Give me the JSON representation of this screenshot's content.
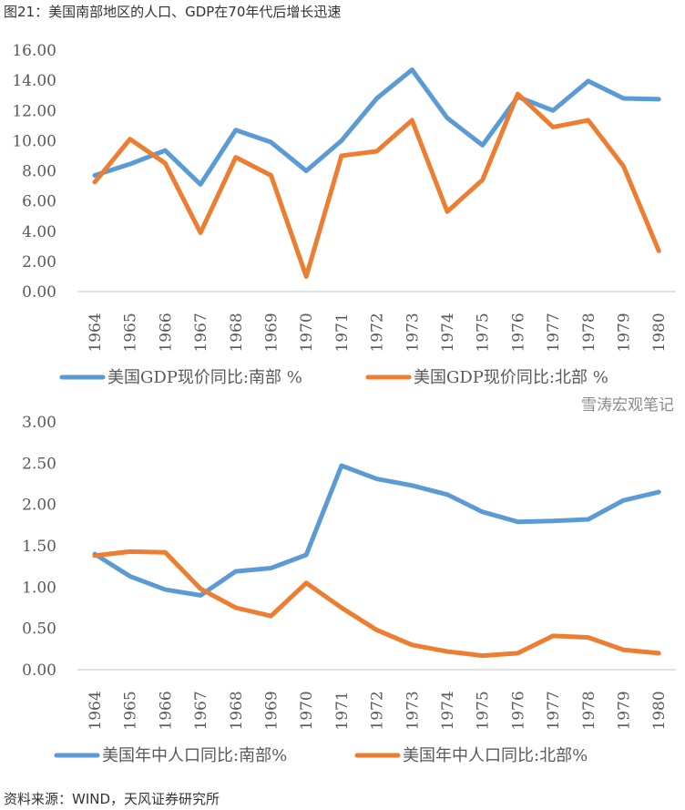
{
  "title": "图21：美国南部地区的人口、GDP在70年代后增长迅速",
  "source": "资料来源：WIND，天风证券研究所",
  "watermark": "雪涛宏观笔记",
  "colors": {
    "south": "#5b9bd5",
    "north": "#ed7d31",
    "axis": "#d9d9d9"
  },
  "chart_data": [
    {
      "type": "line",
      "categories": [
        "1964",
        "1965",
        "1966",
        "1967",
        "1968",
        "1969",
        "1970",
        "1971",
        "1972",
        "1973",
        "1974",
        "1975",
        "1976",
        "1977",
        "1978",
        "1979",
        "1980"
      ],
      "ylim": [
        0,
        16
      ],
      "yticks": [
        "0.00",
        "2.00",
        "4.00",
        "6.00",
        "8.00",
        "10.00",
        "12.00",
        "14.00",
        "16.00"
      ],
      "grid": false,
      "legend": "bottom",
      "series": [
        {
          "name": "美国GDP现价同比:南部 %",
          "color": "#5b9bd5",
          "values": [
            7.7,
            8.45,
            9.35,
            7.1,
            10.7,
            9.9,
            8.0,
            10.0,
            12.8,
            14.7,
            11.5,
            9.7,
            12.9,
            12.0,
            13.95,
            12.8,
            12.75
          ]
        },
        {
          "name": "美国GDP现价同比:北部 %",
          "color": "#ed7d31",
          "values": [
            7.25,
            10.1,
            8.5,
            3.9,
            8.9,
            7.7,
            1.0,
            9.0,
            9.3,
            11.35,
            5.3,
            7.4,
            13.1,
            10.9,
            11.35,
            8.3,
            2.7
          ]
        }
      ]
    },
    {
      "type": "line",
      "categories": [
        "1964",
        "1965",
        "1966",
        "1967",
        "1968",
        "1969",
        "1970",
        "1971",
        "1972",
        "1973",
        "1974",
        "1975",
        "1976",
        "1977",
        "1978",
        "1979",
        "1980"
      ],
      "ylim": [
        0,
        3
      ],
      "yticks": [
        "0.00",
        "0.50",
        "1.00",
        "1.50",
        "2.00",
        "2.50",
        "3.00"
      ],
      "grid": false,
      "legend": "bottom",
      "series": [
        {
          "name": "美国年中人口同比:南部%",
          "color": "#5b9bd5",
          "values": [
            1.4,
            1.13,
            0.97,
            0.9,
            1.19,
            1.23,
            1.39,
            2.47,
            2.31,
            2.23,
            2.12,
            1.91,
            1.79,
            1.8,
            1.82,
            2.05,
            2.15
          ]
        },
        {
          "name": "美国年中人口同比:北部%",
          "color": "#ed7d31",
          "values": [
            1.38,
            1.43,
            1.42,
            0.98,
            0.75,
            0.65,
            1.05,
            0.75,
            0.48,
            0.3,
            0.22,
            0.17,
            0.2,
            0.41,
            0.39,
            0.24,
            0.2
          ]
        }
      ]
    }
  ]
}
